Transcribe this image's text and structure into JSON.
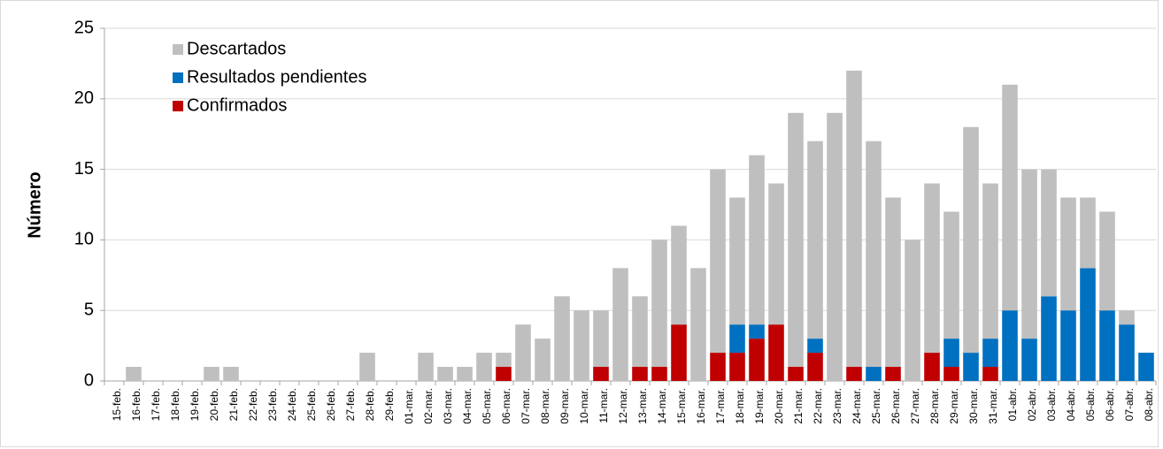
{
  "chart_data": {
    "type": "stacked_bar",
    "y_label": "Número",
    "categories": [
      "15-feb.",
      "16-feb.",
      "17-feb.",
      "18-feb.",
      "19-feb.",
      "20-feb.",
      "21-feb.",
      "22-feb.",
      "23-feb.",
      "24-feb.",
      "25-feb.",
      "26-feb.",
      "27-feb.",
      "28-feb.",
      "29-feb.",
      "01-mar.",
      "02-mar.",
      "03-mar.",
      "04-mar.",
      "05-mar.",
      "06-mar.",
      "07-mar.",
      "08-mar.",
      "09-mar.",
      "10-mar.",
      "11-mar.",
      "12-mar.",
      "13-mar.",
      "14-mar.",
      "15-mar.",
      "16-mar.",
      "17-mar.",
      "18-mar.",
      "19-mar.",
      "20-mar.",
      "21-mar.",
      "22-mar.",
      "23-mar.",
      "24-mar.",
      "25-mar.",
      "26-mar.",
      "27-mar.",
      "28-mar.",
      "29-mar.",
      "30-mar.",
      "31-mar.",
      "01-abr.",
      "02-abr.",
      "03-abr.",
      "04-abr.",
      "05-abr.",
      "06-abr.",
      "07-abr.",
      "08-abr."
    ],
    "series": [
      {
        "name": "Descartados",
        "color": "#bfbfbf",
        "values": [
          0,
          1,
          0,
          0,
          0,
          1,
          1,
          0,
          0,
          0,
          0,
          0,
          0,
          2,
          0,
          0,
          2,
          1,
          1,
          2,
          1,
          4,
          3,
          6,
          5,
          4,
          8,
          5,
          9,
          7,
          8,
          13,
          9,
          12,
          10,
          18,
          14,
          19,
          21,
          16,
          12,
          10,
          12,
          9,
          16,
          11,
          16,
          12,
          9,
          8,
          5,
          7,
          1,
          0
        ]
      },
      {
        "name": "Resultados pendientes",
        "color": "#0070c0",
        "values": [
          0,
          0,
          0,
          0,
          0,
          0,
          0,
          0,
          0,
          0,
          0,
          0,
          0,
          0,
          0,
          0,
          0,
          0,
          0,
          0,
          0,
          0,
          0,
          0,
          0,
          0,
          0,
          0,
          0,
          0,
          0,
          0,
          2,
          1,
          0,
          0,
          1,
          0,
          0,
          1,
          0,
          0,
          0,
          2,
          2,
          2,
          5,
          3,
          6,
          5,
          8,
          5,
          4,
          2
        ]
      },
      {
        "name": "Confirmados",
        "color": "#c00000",
        "values": [
          0,
          0,
          0,
          0,
          0,
          0,
          0,
          0,
          0,
          0,
          0,
          0,
          0,
          0,
          0,
          0,
          0,
          0,
          0,
          0,
          1,
          0,
          0,
          0,
          0,
          1,
          0,
          1,
          1,
          4,
          0,
          2,
          2,
          3,
          4,
          1,
          2,
          0,
          1,
          0,
          1,
          0,
          2,
          1,
          0,
          1,
          0,
          0,
          0,
          0,
          0,
          0,
          0,
          0
        ]
      }
    ],
    "ylim": [
      0,
      25
    ],
    "yticks": [
      0,
      5,
      10,
      15,
      20,
      25
    ],
    "grid": true
  }
}
